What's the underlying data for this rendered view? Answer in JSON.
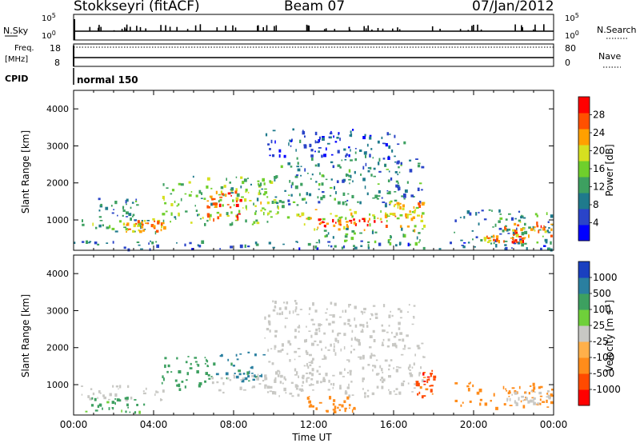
{
  "header": {
    "title": "Stokkseyri (fitACF)",
    "beam": "Beam 07",
    "date": "07/Jan/2012"
  },
  "panels": {
    "nsky": {
      "left_label": "N.Sky",
      "left_ticks": [
        "10^5",
        "10^0"
      ],
      "right_ticks": [
        "10^5",
        "10^0"
      ],
      "right_label": "N.Search"
    },
    "freq": {
      "left_label_1": "Freq.",
      "left_label_2": "[MHz]",
      "left_ticks": [
        "18",
        "8"
      ],
      "right_ticks": [
        "80",
        "0"
      ],
      "right_label": "Nave"
    },
    "cpid": {
      "label": "CPID",
      "mode": "normal 150"
    }
  },
  "chart_data": [
    {
      "type": "heatmap",
      "name": "power",
      "ylabel": "Slant Range [km]",
      "xlabel": "",
      "xlim_hours": [
        0,
        24
      ],
      "ylim": [
        180,
        4500
      ],
      "y_ticks": [
        "4000",
        "3000",
        "2000",
        "1000"
      ],
      "colorbar": {
        "label": "Power [dB]",
        "ticks": [
          "28",
          "24",
          "20",
          "16",
          "12",
          "8",
          "4"
        ],
        "colors": [
          "#0000ff",
          "#2a44c8",
          "#1f7a8c",
          "#3da060",
          "#6fcf2c",
          "#d6e020",
          "#ffa000",
          "#ff5000",
          "#ff0000"
        ]
      },
      "regions": [
        {
          "t0": 0.4,
          "t1": 4.5,
          "r0": 650,
          "r1": 1050,
          "level": 14
        },
        {
          "t0": 2.6,
          "t1": 4.5,
          "r0": 700,
          "r1": 1000,
          "level": 23
        },
        {
          "t0": 1.2,
          "t1": 3.2,
          "r0": 1000,
          "r1": 1600,
          "level": 10
        },
        {
          "t0": 4.3,
          "t1": 10.0,
          "r0": 900,
          "r1": 2200,
          "level": 15
        },
        {
          "t0": 6.6,
          "t1": 8.4,
          "r0": 1000,
          "r1": 1800,
          "level": 27
        },
        {
          "t0": 8.5,
          "t1": 11.5,
          "r0": 1100,
          "r1": 1600,
          "level": 18
        },
        {
          "t0": 10.0,
          "t1": 17.5,
          "r0": 1400,
          "r1": 2700,
          "level": 10
        },
        {
          "t0": 11.5,
          "t1": 17.5,
          "r0": 750,
          "r1": 1300,
          "level": 20
        },
        {
          "t0": 12.0,
          "t1": 16.0,
          "r0": 850,
          "r1": 1100,
          "level": 28
        },
        {
          "t0": 12.0,
          "t1": 17.5,
          "r0": 400,
          "r1": 800,
          "level": 13
        },
        {
          "t0": 15.5,
          "t1": 17.5,
          "r0": 1100,
          "r1": 1500,
          "level": 22
        },
        {
          "t0": 9.5,
          "t1": 16.5,
          "r0": 2700,
          "r1": 3500,
          "level": 6
        },
        {
          "t0": 19.0,
          "t1": 24.0,
          "r0": 400,
          "r1": 1300,
          "level": 10
        },
        {
          "t0": 21.5,
          "t1": 24.0,
          "r0": 600,
          "r1": 1000,
          "level": 24
        },
        {
          "t0": 20.5,
          "t1": 22.5,
          "r0": 400,
          "r1": 600,
          "level": 25
        },
        {
          "t0": 0.0,
          "t1": 24.0,
          "r0": 200,
          "r1": 450,
          "level": 8
        }
      ]
    },
    {
      "type": "heatmap",
      "name": "velocity",
      "ylabel": "Slant Range [km]",
      "xlabel": "Time UT",
      "xlim_hours": [
        0,
        24
      ],
      "ylim": [
        180,
        4500
      ],
      "x_ticks": [
        "00:00",
        "04:00",
        "08:00",
        "12:00",
        "16:00",
        "20:00",
        "00:00"
      ],
      "y_ticks": [
        "4000",
        "3000",
        "2000",
        "1000"
      ],
      "colorbar": {
        "label": "Velocity [m s^-1]",
        "ticks": [
          "1000",
          "500",
          "100",
          "25",
          "-25",
          "-100",
          "-500",
          "-1000"
        ],
        "colors": [
          "#ff0000",
          "#ff4a00",
          "#ff8c1a",
          "#ffb04a",
          "#c8c8c4",
          "#6fd03a",
          "#3da060",
          "#2a7fa0",
          "#1a40c0"
        ]
      },
      "regions": [
        {
          "t0": 0.3,
          "t1": 4.5,
          "r0": 600,
          "r1": 1000,
          "level": 0
        },
        {
          "t0": 0.4,
          "t1": 3.5,
          "r0": 250,
          "r1": 700,
          "level": 150
        },
        {
          "t0": 4.3,
          "t1": 7.0,
          "r0": 900,
          "r1": 1800,
          "level": 300
        },
        {
          "t0": 7.0,
          "t1": 9.5,
          "r0": 1100,
          "r1": 1900,
          "level": 700
        },
        {
          "t0": 6.5,
          "t1": 12.0,
          "r0": 800,
          "r1": 1300,
          "level": 0
        },
        {
          "t0": 9.5,
          "t1": 17.5,
          "r0": 700,
          "r1": 2600,
          "level": 0
        },
        {
          "t0": 9.5,
          "t1": 17.0,
          "r0": 2600,
          "r1": 3300,
          "level": 0
        },
        {
          "t0": 11.5,
          "t1": 14.0,
          "r0": 300,
          "r1": 700,
          "level": -300
        },
        {
          "t0": 17.0,
          "t1": 18.0,
          "r0": 700,
          "r1": 1400,
          "level": -700
        },
        {
          "t0": 19.0,
          "t1": 24.0,
          "r0": 400,
          "r1": 1100,
          "level": -300
        },
        {
          "t0": 21.5,
          "t1": 24.0,
          "r0": 500,
          "r1": 900,
          "level": 0
        }
      ]
    }
  ]
}
